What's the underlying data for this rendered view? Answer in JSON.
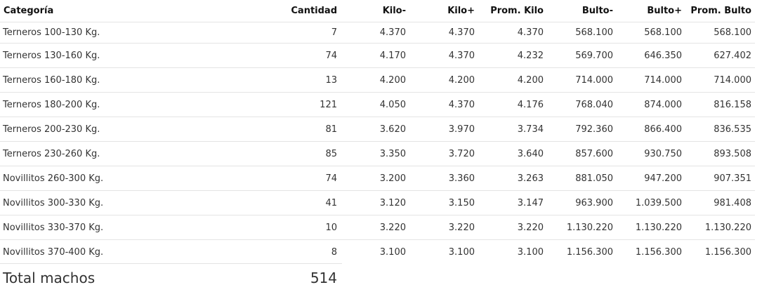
{
  "table": {
    "columns": [
      "Categoría",
      "Cantidad",
      "Kilo-",
      "Kilo+",
      "Prom. Kilo",
      "Bulto-",
      "Bulto+",
      "Prom. Bulto"
    ],
    "rows": [
      [
        "Terneros 100-130 Kg.",
        "7",
        "4.370",
        "4.370",
        "4.370",
        "568.100",
        "568.100",
        "568.100"
      ],
      [
        "Terneros 130-160 Kg.",
        "74",
        "4.170",
        "4.370",
        "4.232",
        "569.700",
        "646.350",
        "627.402"
      ],
      [
        "Terneros 160-180 Kg.",
        "13",
        "4.200",
        "4.200",
        "4.200",
        "714.000",
        "714.000",
        "714.000"
      ],
      [
        "Terneros 180-200 Kg.",
        "121",
        "4.050",
        "4.370",
        "4.176",
        "768.040",
        "874.000",
        "816.158"
      ],
      [
        "Terneros 200-230 Kg.",
        "81",
        "3.620",
        "3.970",
        "3.734",
        "792.360",
        "866.400",
        "836.535"
      ],
      [
        "Terneros 230-260 Kg.",
        "85",
        "3.350",
        "3.720",
        "3.640",
        "857.600",
        "930.750",
        "893.508"
      ],
      [
        "Novillitos 260-300 Kg.",
        "74",
        "3.200",
        "3.360",
        "3.263",
        "881.050",
        "947.200",
        "907.351"
      ],
      [
        "Novillitos 300-330 Kg.",
        "41",
        "3.120",
        "3.150",
        "3.147",
        "963.900",
        "1.039.500",
        "981.408"
      ],
      [
        "Novillitos 330-370 Kg.",
        "10",
        "3.220",
        "3.220",
        "3.220",
        "1.130.220",
        "1.130.220",
        "1.130.220"
      ],
      [
        "Novillitos 370-400 Kg.",
        "8",
        "3.100",
        "3.100",
        "3.100",
        "1.156.300",
        "1.156.300",
        "1.156.300"
      ]
    ]
  },
  "total": {
    "label": "Total machos",
    "value": "514"
  }
}
